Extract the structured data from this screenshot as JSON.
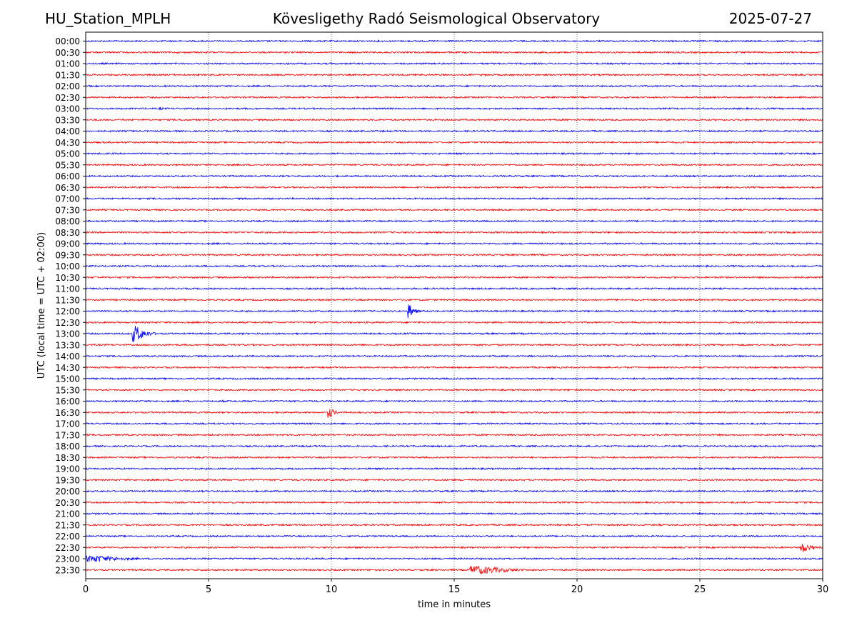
{
  "header": {
    "station": "HU_Station_MPLH",
    "title": "Kövesligethy Radó Seismological Observatory",
    "date": "2025-07-27"
  },
  "chart_data": {
    "type": "line",
    "title": "Kövesligethy Radó Seismological Observatory",
    "xlabel": "time in minutes",
    "ylabel": "UTC (local time = UTC + 02:00)",
    "xlim": [
      0,
      30
    ],
    "xticks": [
      0,
      5,
      10,
      15,
      20,
      25,
      30
    ],
    "grid": "vertical dotted lines at x ticks",
    "row_labels": [
      "00:00",
      "00:30",
      "01:00",
      "01:30",
      "02:00",
      "02:30",
      "03:00",
      "03:30",
      "04:00",
      "04:30",
      "05:00",
      "05:30",
      "06:00",
      "06:30",
      "07:00",
      "07:30",
      "08:00",
      "08:30",
      "09:00",
      "09:30",
      "10:00",
      "10:30",
      "11:00",
      "11:30",
      "12:00",
      "12:30",
      "13:00",
      "13:30",
      "14:00",
      "14:30",
      "15:00",
      "15:30",
      "16:00",
      "16:30",
      "17:00",
      "17:30",
      "18:00",
      "18:30",
      "19:00",
      "19:30",
      "20:00",
      "20:30",
      "21:00",
      "21:30",
      "22:00",
      "22:30",
      "23:00",
      "23:30"
    ],
    "colors": {
      "even_rows": "#0000ff",
      "odd_rows": "#ff0000"
    },
    "events": [
      {
        "row": "03:00",
        "start_min": 3.0,
        "end_min": 3.4,
        "amplitude": 0.4
      },
      {
        "row": "12:00",
        "start_min": 13.1,
        "end_min": 13.6,
        "amplitude": 1.8
      },
      {
        "row": "13:00",
        "start_min": 1.9,
        "end_min": 2.9,
        "amplitude": 2.0
      },
      {
        "row": "16:00",
        "start_min": 5.5,
        "end_min": 6.3,
        "amplitude": 0.25
      },
      {
        "row": "16:30",
        "start_min": 9.85,
        "end_min": 10.4,
        "amplitude": 1.3
      },
      {
        "row": "17:00",
        "start_min": 24.6,
        "end_min": 25.3,
        "amplitude": 0.2
      },
      {
        "row": "19:00",
        "start_min": 23.2,
        "end_min": 23.5,
        "amplitude": 0.2
      },
      {
        "row": "22:30",
        "start_min": 29.05,
        "end_min": 30.0,
        "amplitude": 1.2
      },
      {
        "row": "23:00",
        "start_min": 0.0,
        "end_min": 3.2,
        "amplitude": 0.8
      },
      {
        "row": "23:30",
        "start_min": 15.6,
        "end_min": 18.8,
        "amplitude": 1.0
      }
    ]
  }
}
